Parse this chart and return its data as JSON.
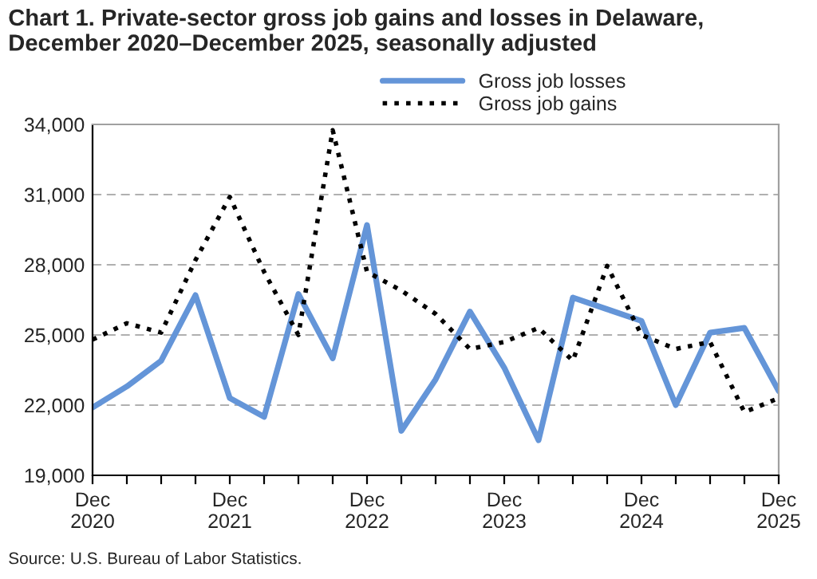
{
  "chart_data": {
    "type": "line",
    "title": "Chart 1. Private-sector gross job gains and losses in Delaware,\nDecember 2020–December 2025, seasonally adjusted",
    "categories": [
      "Dec\n2020",
      null,
      null,
      null,
      "Dec\n2021",
      null,
      null,
      null,
      "Dec\n2022",
      null,
      null,
      null,
      "Dec\n2023",
      null,
      null,
      null,
      "Dec\n2024",
      null,
      null,
      null,
      "Dec\n2025"
    ],
    "series": [
      {
        "name": "Gross job losses",
        "color": "#6495d8",
        "line_style": "solid",
        "values": [
          21900,
          22800,
          23900,
          26700,
          22300,
          21500,
          26750,
          24000,
          29700,
          20900,
          23100,
          26000,
          23600,
          20500,
          26600,
          26100,
          25600,
          22000,
          25100,
          25300,
          22600
        ]
      },
      {
        "name": "Gross job gains",
        "color": "#000000",
        "line_style": "dotted",
        "values": [
          24800,
          25500,
          25100,
          28200,
          30900,
          27700,
          25000,
          33750,
          27700,
          26900,
          25900,
          24400,
          24700,
          25300,
          23900,
          27950,
          25000,
          24400,
          24700,
          21700,
          22300
        ]
      }
    ],
    "ylim": [
      19000,
      34000
    ],
    "yticks": [
      {
        "value": 19000,
        "label": "19,000"
      },
      {
        "value": 22000,
        "label": "22,000"
      },
      {
        "value": 25000,
        "label": "25,000"
      },
      {
        "value": 28000,
        "label": "28,000"
      },
      {
        "value": 31000,
        "label": "31,000"
      },
      {
        "value": 34000,
        "label": "34,000"
      }
    ],
    "grid": "y",
    "legend": "top",
    "annotations": [
      "Source: U.S. Bureau of Labor Statistics."
    ]
  }
}
